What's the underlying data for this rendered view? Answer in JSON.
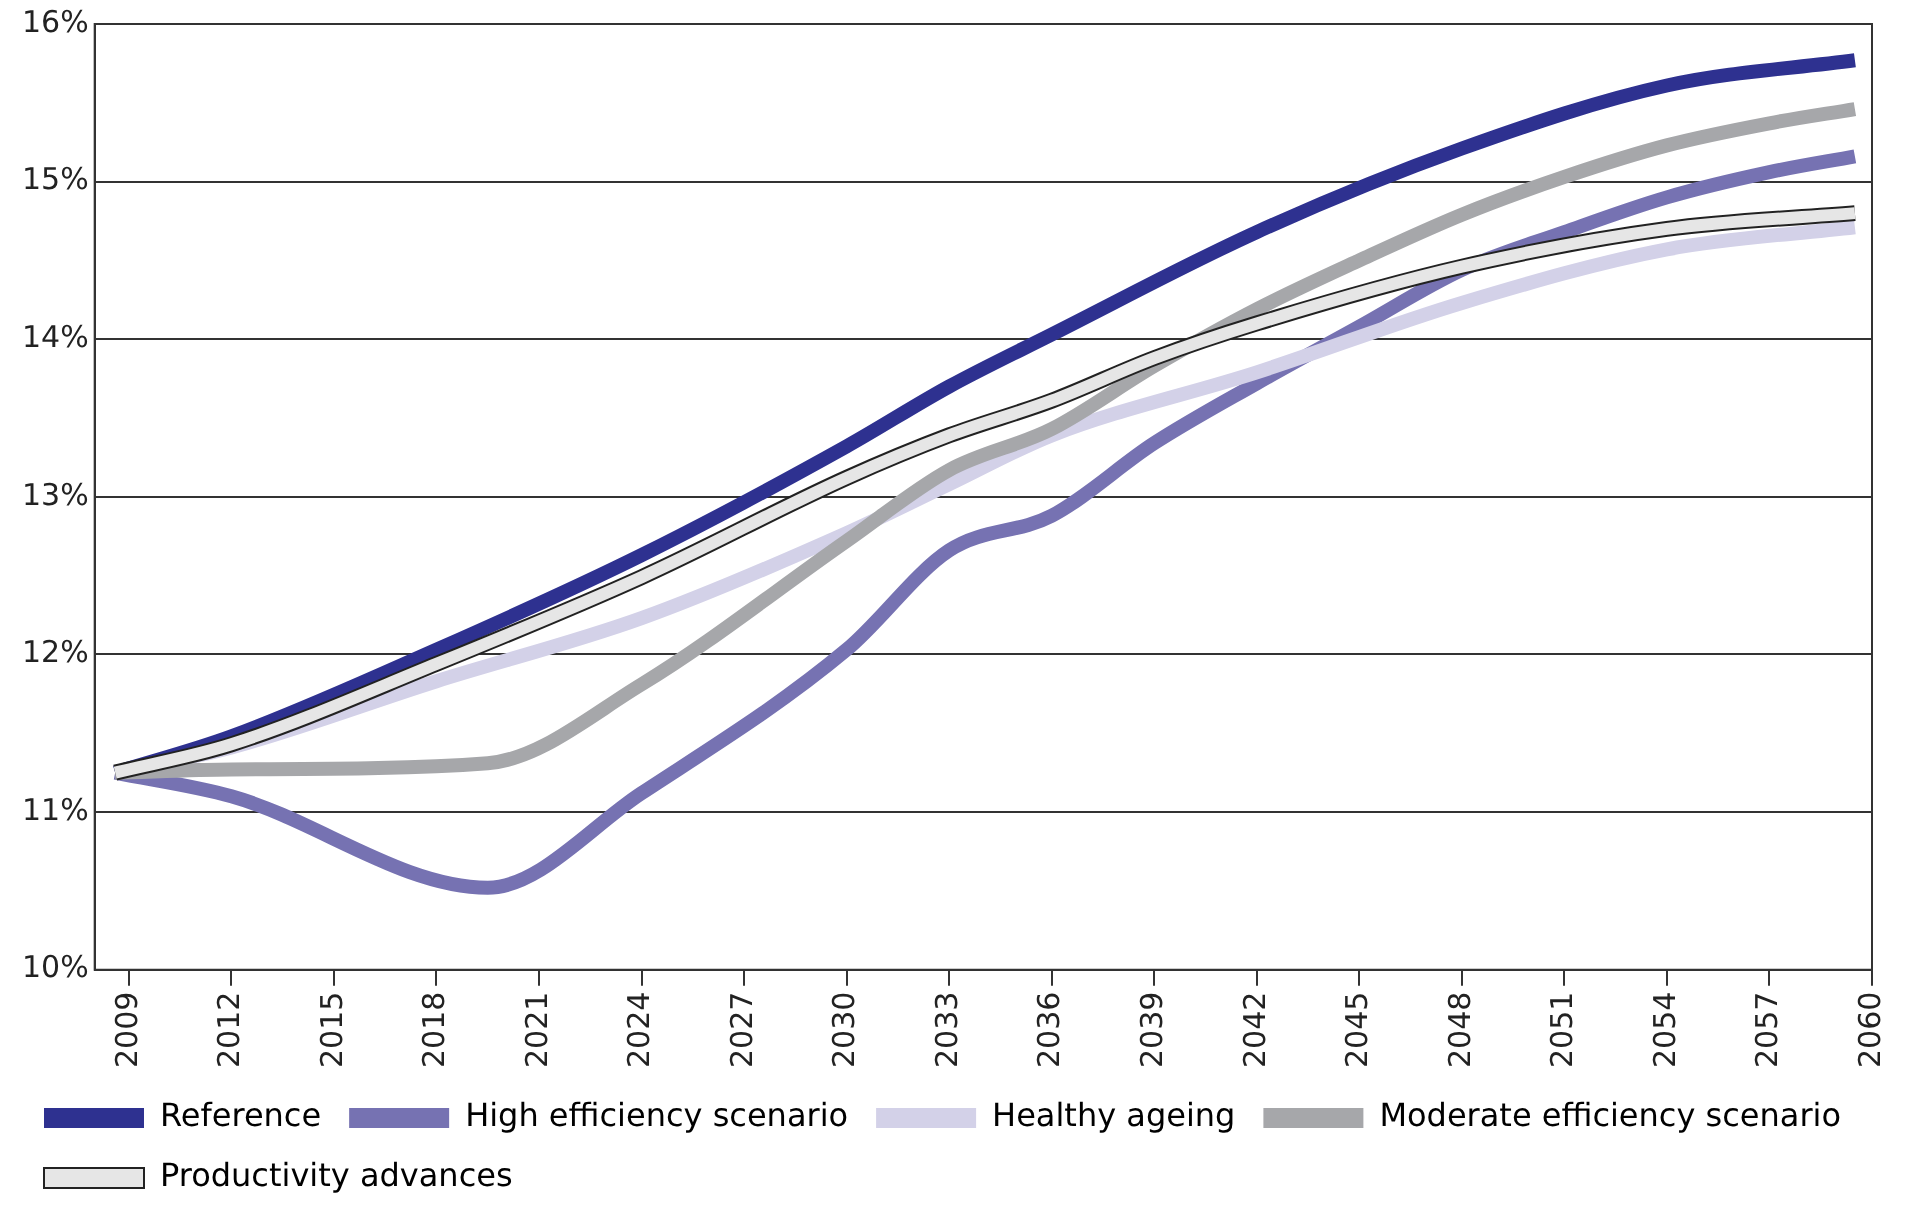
{
  "chart_data": {
    "type": "line",
    "xlim": [
      2008,
      2060
    ],
    "xticks": [
      2009,
      2012,
      2015,
      2018,
      2021,
      2024,
      2027,
      2030,
      2033,
      2036,
      2039,
      2042,
      2045,
      2048,
      2051,
      2054,
      2057,
      2060
    ],
    "ylim": [
      10,
      16
    ],
    "yticks": [
      {
        "value": 10,
        "label": "10%"
      },
      {
        "value": 11,
        "label": "11%"
      },
      {
        "value": 12,
        "label": "12%"
      },
      {
        "value": 13,
        "label": "13%"
      },
      {
        "value": 14,
        "label": "14%"
      },
      {
        "value": 15,
        "label": "15%"
      },
      {
        "value": 16,
        "label": "16%"
      }
    ],
    "grid": "y",
    "legend": "bottom",
    "marker": "none",
    "line_style": "solid",
    "series": [
      {
        "name": "Reference",
        "color": "#2e3190",
        "x": [
          2008.6,
          2012,
          2018,
          2024,
          2030,
          2033,
          2036,
          2042,
          2048,
          2054,
          2059.5
        ],
        "values": [
          11.25,
          11.48,
          12.03,
          12.63,
          13.32,
          13.7,
          14.03,
          14.68,
          15.21,
          15.61,
          15.77
        ]
      },
      {
        "name": "High efficiency scenario",
        "color": "#7672b2",
        "x": [
          2008.6,
          2012,
          2019.5,
          2024,
          2030,
          2033,
          2036,
          2039,
          2042,
          2045,
          2048,
          2051,
          2054,
          2057,
          2059.5
        ],
        "values": [
          11.25,
          11.1,
          10.52,
          11.12,
          12.03,
          12.66,
          12.88,
          13.34,
          13.72,
          14.08,
          14.44,
          14.68,
          14.9,
          15.06,
          15.16
        ]
      },
      {
        "name": "Healthy ageing",
        "color": "#d3d1e8",
        "x": [
          2008.6,
          2012,
          2018,
          2024,
          2030,
          2033,
          2036,
          2042,
          2048,
          2054,
          2059.5
        ],
        "values": [
          11.25,
          11.41,
          11.83,
          12.23,
          12.77,
          13.08,
          13.39,
          13.79,
          14.23,
          14.57,
          14.71
        ]
      },
      {
        "name": "Moderate efficiency scenario",
        "color": "#a6a7aa",
        "x": [
          2008.6,
          2012,
          2019.5,
          2024,
          2030,
          2033,
          2036,
          2039,
          2042,
          2045,
          2048,
          2051,
          2054,
          2057,
          2059.5
        ],
        "values": [
          11.25,
          11.27,
          11.31,
          11.81,
          12.72,
          13.17,
          13.43,
          13.83,
          14.19,
          14.5,
          14.79,
          15.03,
          15.23,
          15.37,
          15.46
        ]
      },
      {
        "name": "Productivity advances",
        "color": "#e6e6e6",
        "x": [
          2008.6,
          2012,
          2018,
          2024,
          2030,
          2033,
          2036,
          2039,
          2042,
          2048,
          2054,
          2059.5
        ],
        "values": [
          11.25,
          11.43,
          11.94,
          12.49,
          13.12,
          13.39,
          13.61,
          13.88,
          14.1,
          14.46,
          14.7,
          14.8
        ]
      }
    ]
  }
}
